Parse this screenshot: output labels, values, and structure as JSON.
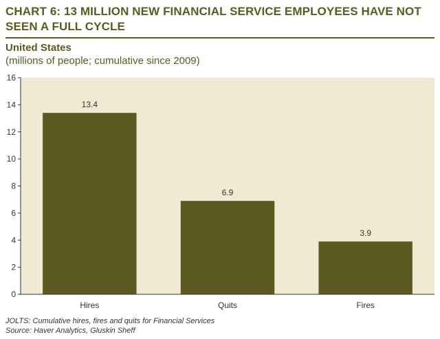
{
  "header": {
    "title": "CHART 6: 13 MILLION NEW FINANCIAL SERVICE EMPLOYEES HAVE NOT SEEN A FULL CYCLE",
    "subtitle": "United States",
    "units": "(millions of people; cumulative since 2009)"
  },
  "footer": {
    "note": "JOLTS: Cumulative hires, fires and quits for Financial Services",
    "source": "Source: Haver Analytics, Gluskin Sheff"
  },
  "colors": {
    "plot_background": "#f1ead3",
    "bar": "#5c5a21",
    "title": "#5c5a21"
  },
  "chart_data": {
    "type": "bar",
    "title": "CHART 6: 13 MILLION NEW FINANCIAL SERVICE EMPLOYEES HAVE NOT SEEN A FULL CYCLE",
    "subtitle": "United States",
    "ylabel": "(millions of people; cumulative since 2009)",
    "xlabel": "",
    "categories": [
      "Hires",
      "Quits",
      "Fires"
    ],
    "values": [
      13.4,
      6.9,
      3.9
    ],
    "data_labels": [
      "13.4",
      "6.9",
      "3.9"
    ],
    "ylim": [
      0,
      16
    ],
    "yticks": [
      0,
      2,
      4,
      6,
      8,
      10,
      12,
      14,
      16
    ],
    "grid": false,
    "legend": "none"
  }
}
